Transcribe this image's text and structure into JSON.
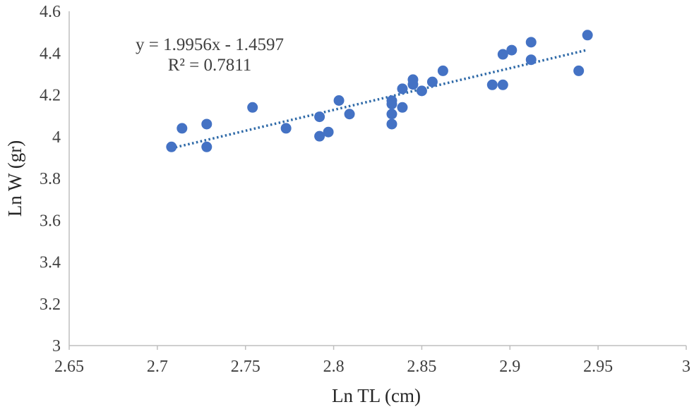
{
  "chart_data": {
    "type": "scatter",
    "xlabel": "Ln TL (cm)",
    "ylabel": "Ln W (gr)",
    "xlim": [
      2.65,
      3.0
    ],
    "ylim": [
      3.0,
      4.6
    ],
    "xticks": [
      "2.65",
      "2.7",
      "2.75",
      "2.8",
      "2.85",
      "2.9",
      "2.95",
      "3"
    ],
    "yticks": [
      "3",
      "3.2",
      "3.4",
      "3.6",
      "3.8",
      "4",
      "4.2",
      "4.4",
      "4.6"
    ],
    "grid": false,
    "legend": "none",
    "marker_color": "#4472c4",
    "trendline_color": "#2f6aa8",
    "trendline": {
      "type": "linear",
      "slope": 1.9956,
      "intercept": -1.4597,
      "x_range": [
        2.708,
        2.944
      ],
      "style": "dotted",
      "equation": "y = 1.9956x - 1.4597",
      "r_squared": "R² = 0.7811"
    },
    "points": [
      {
        "x": 2.708,
        "y": 3.951
      },
      {
        "x": 2.714,
        "y": 4.04
      },
      {
        "x": 2.728,
        "y": 4.06
      },
      {
        "x": 2.728,
        "y": 3.951
      },
      {
        "x": 2.754,
        "y": 4.14
      },
      {
        "x": 2.773,
        "y": 4.04
      },
      {
        "x": 2.792,
        "y": 4.095
      },
      {
        "x": 2.792,
        "y": 4.002
      },
      {
        "x": 2.797,
        "y": 4.022
      },
      {
        "x": 2.803,
        "y": 4.173
      },
      {
        "x": 2.809,
        "y": 4.108
      },
      {
        "x": 2.833,
        "y": 4.172
      },
      {
        "x": 2.833,
        "y": 4.156
      },
      {
        "x": 2.833,
        "y": 4.108
      },
      {
        "x": 2.833,
        "y": 4.06
      },
      {
        "x": 2.839,
        "y": 4.229
      },
      {
        "x": 2.839,
        "y": 4.14
      },
      {
        "x": 2.845,
        "y": 4.273
      },
      {
        "x": 2.845,
        "y": 4.25
      },
      {
        "x": 2.85,
        "y": 4.219
      },
      {
        "x": 2.856,
        "y": 4.262
      },
      {
        "x": 2.862,
        "y": 4.315
      },
      {
        "x": 2.89,
        "y": 4.248
      },
      {
        "x": 2.896,
        "y": 4.248
      },
      {
        "x": 2.896,
        "y": 4.394
      },
      {
        "x": 2.901,
        "y": 4.414
      },
      {
        "x": 2.912,
        "y": 4.452
      },
      {
        "x": 2.912,
        "y": 4.368
      },
      {
        "x": 2.939,
        "y": 4.315
      },
      {
        "x": 2.944,
        "y": 4.486
      }
    ]
  }
}
